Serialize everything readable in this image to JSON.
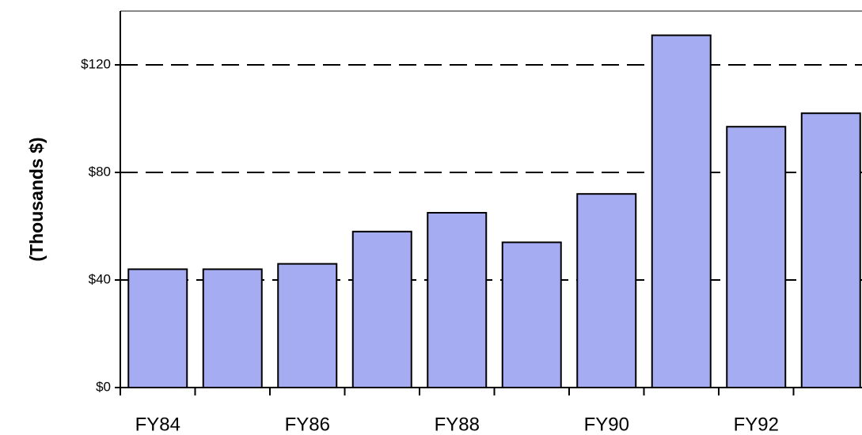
{
  "chart_data": {
    "type": "bar",
    "y_label": "(Thousands $)",
    "categories": [
      "FY84",
      null,
      "FY86",
      null,
      "FY88",
      null,
      "FY90",
      null,
      "FY92",
      null
    ],
    "values": [
      44,
      44,
      46,
      58,
      65,
      54,
      72,
      131,
      97,
      102
    ],
    "color": "#a6acf2",
    "ylim": [
      0,
      140
    ],
    "yticks": [
      {
        "value": 0,
        "label": "$0"
      },
      {
        "value": 40,
        "label": "$40"
      },
      {
        "value": 80,
        "label": "$80"
      },
      {
        "value": 120,
        "label": "$120"
      }
    ],
    "grid": true
  }
}
